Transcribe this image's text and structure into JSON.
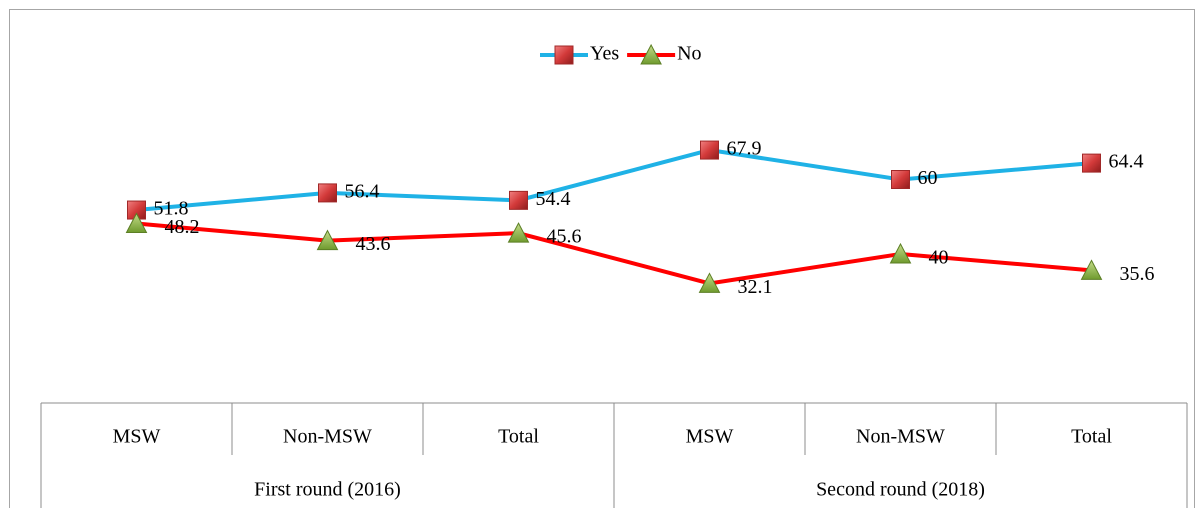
{
  "chart_data": {
    "type": "line",
    "categories": [
      "MSW",
      "Non-MSW",
      "Total",
      "MSW",
      "Non-MSW",
      "Total"
    ],
    "groups": [
      "First round (2016)",
      "Second round (2018)"
    ],
    "series": [
      {
        "name": "Yes",
        "color": "#1fb2e6",
        "values": [
          51.8,
          56.4,
          54.4,
          67.9,
          60,
          64.4
        ]
      },
      {
        "name": "No",
        "color": "#ff0000",
        "values": [
          48.2,
          43.6,
          45.6,
          32.1,
          40,
          35.6
        ]
      }
    ],
    "ylim": [
      0,
      80
    ],
    "legend": "top"
  }
}
